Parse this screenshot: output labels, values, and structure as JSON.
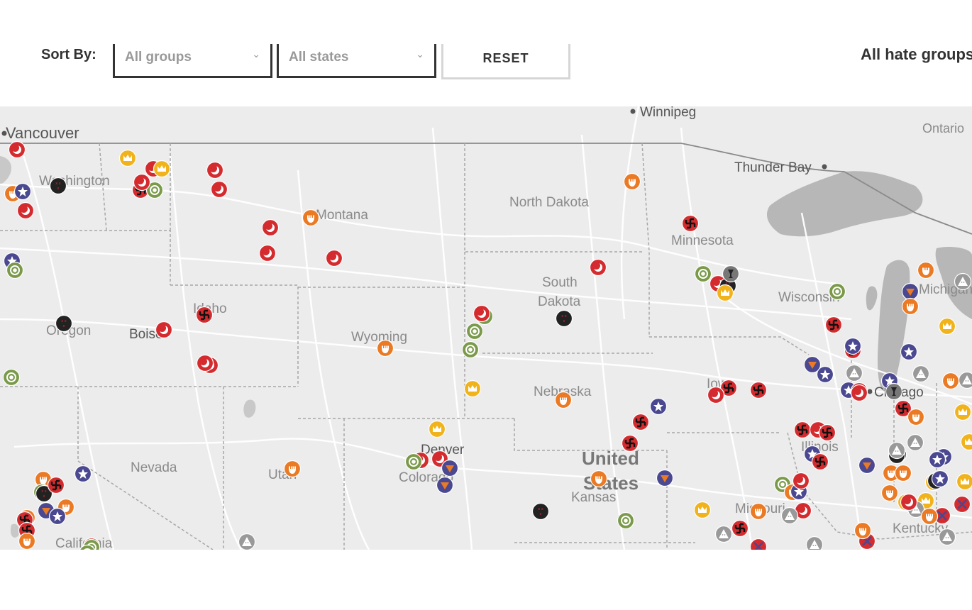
{
  "filters": {
    "sort_label": "Sort By:",
    "group_select": "All groups",
    "state_select": "All states",
    "reset_label": "RESET",
    "results_title": "All hate groups"
  },
  "map": {
    "colors": {
      "land": "#ececec",
      "water": "#b7b7b7",
      "road": "#ffffff",
      "border": "#a7a7a7",
      "label": "#8a8a8a",
      "country_label": "#777777"
    },
    "labels": [
      {
        "name": "Vancouver",
        "type": "city"
      },
      {
        "name": "Winnipeg",
        "type": "city"
      },
      {
        "name": "Ontario",
        "type": "region"
      },
      {
        "name": "Thunder Bay",
        "type": "city"
      },
      {
        "name": "Washington",
        "type": "state"
      },
      {
        "name": "Montana",
        "type": "state"
      },
      {
        "name": "North Dakota",
        "type": "state"
      },
      {
        "name": "Minnesota",
        "type": "state"
      },
      {
        "name": "South",
        "type": "state"
      },
      {
        "name": "Dakota",
        "type": "state"
      },
      {
        "name": "Wisconsin",
        "type": "state"
      },
      {
        "name": "Michigan",
        "type": "state"
      },
      {
        "name": "Idaho",
        "type": "state"
      },
      {
        "name": "Oregon",
        "type": "state"
      },
      {
        "name": "Boise",
        "type": "city"
      },
      {
        "name": "Wyoming",
        "type": "state"
      },
      {
        "name": "Nebraska",
        "type": "state"
      },
      {
        "name": "Iowa",
        "type": "state"
      },
      {
        "name": "Chicago",
        "type": "city"
      },
      {
        "name": "Illinois",
        "type": "state"
      },
      {
        "name": "Nevada",
        "type": "state"
      },
      {
        "name": "Utah",
        "type": "state"
      },
      {
        "name": "Denver",
        "type": "city"
      },
      {
        "name": "Colorado",
        "type": "state"
      },
      {
        "name": "United",
        "type": "country"
      },
      {
        "name": "States",
        "type": "country"
      },
      {
        "name": "Kansas",
        "type": "state"
      },
      {
        "name": "Missouri",
        "type": "state"
      },
      {
        "name": "Kentucky",
        "type": "state"
      },
      {
        "name": "California",
        "type": "state"
      }
    ],
    "legend_colors": {
      "crescent": "#d42b2f",
      "swastika": "#d42b2f",
      "fist": "#ea7a24",
      "crown": "#f1b31c",
      "ring": "#7a9a4a",
      "star": "#4a4890",
      "triangle": "#4a4890",
      "kkk": "#222222",
      "hood": "#999999",
      "cross": "#4a4890",
      "music": "#d42b2f",
      "goblet": "#777777"
    },
    "markers": [
      {
        "type": "crescent",
        "state": "WA"
      },
      {
        "type": "crescent",
        "state": "WA"
      },
      {
        "type": "fist",
        "state": "WA"
      },
      {
        "type": "star",
        "state": "WA"
      },
      {
        "type": "kkk",
        "state": "WA"
      },
      {
        "type": "crown",
        "state": "ID"
      },
      {
        "type": "swastika",
        "state": "ID"
      },
      {
        "type": "ring",
        "state": "ID"
      },
      {
        "type": "crescent",
        "state": "ID"
      },
      {
        "type": "crown",
        "state": "ID"
      },
      {
        "type": "crescent",
        "state": "ID"
      },
      {
        "type": "crescent",
        "state": "MT"
      },
      {
        "type": "crescent",
        "state": "MT"
      },
      {
        "type": "crescent",
        "state": "MT"
      },
      {
        "type": "crescent",
        "state": "MT"
      },
      {
        "type": "crescent",
        "state": "MT"
      },
      {
        "type": "fist",
        "state": "MT"
      },
      {
        "type": "star",
        "state": "OR"
      },
      {
        "type": "ring",
        "state": "OR"
      },
      {
        "type": "kkk",
        "state": "OR"
      },
      {
        "type": "ring",
        "state": "OR"
      },
      {
        "type": "crescent",
        "state": "ID"
      },
      {
        "type": "swastika",
        "state": "ID"
      },
      {
        "type": "crescent",
        "state": "ID"
      },
      {
        "type": "crescent",
        "state": "ID"
      },
      {
        "type": "fist",
        "state": "WY"
      },
      {
        "type": "crescent",
        "state": "SD"
      },
      {
        "type": "ring",
        "state": "SD"
      },
      {
        "type": "ring",
        "state": "SD"
      },
      {
        "type": "ring",
        "state": "NE"
      },
      {
        "type": "crown",
        "state": "NE"
      },
      {
        "type": "kkk",
        "state": "SD"
      },
      {
        "type": "crescent",
        "state": "SD"
      },
      {
        "type": "fist",
        "state": "ND"
      },
      {
        "type": "swastika",
        "state": "MN"
      },
      {
        "type": "ring",
        "state": "MN"
      },
      {
        "type": "crescent",
        "state": "MN"
      },
      {
        "type": "kkk",
        "state": "MN"
      },
      {
        "type": "goblet",
        "state": "MN"
      },
      {
        "type": "crown",
        "state": "MN"
      },
      {
        "type": "ring",
        "state": "WI"
      },
      {
        "type": "swastika",
        "state": "WI"
      },
      {
        "type": "fist",
        "state": "MI"
      },
      {
        "type": "triangle",
        "state": "MI"
      },
      {
        "type": "fist",
        "state": "MI"
      },
      {
        "type": "hood",
        "state": "MI"
      },
      {
        "type": "crown",
        "state": "MI"
      },
      {
        "type": "star",
        "state": "MI"
      },
      {
        "type": "swastika",
        "state": "WI"
      },
      {
        "type": "star",
        "state": "WI"
      },
      {
        "type": "triangle",
        "state": "IL"
      },
      {
        "type": "star",
        "state": "IL"
      },
      {
        "type": "hood",
        "state": "IL"
      },
      {
        "type": "star",
        "state": "IL"
      },
      {
        "type": "music",
        "state": "IL"
      },
      {
        "type": "crescent",
        "state": "IL"
      },
      {
        "type": "star",
        "state": "IN"
      },
      {
        "type": "goblet",
        "state": "IL"
      },
      {
        "type": "hood",
        "state": "IN"
      },
      {
        "type": "kkk",
        "state": "MI"
      },
      {
        "type": "fist",
        "state": "MI"
      },
      {
        "type": "hood",
        "state": "MI"
      },
      {
        "type": "crown",
        "state": "MI"
      },
      {
        "type": "swastika",
        "state": "IN"
      },
      {
        "type": "fist",
        "state": "IN"
      },
      {
        "type": "hood",
        "state": "IN"
      },
      {
        "type": "crown",
        "state": "OH"
      },
      {
        "type": "swastika",
        "state": "IA"
      },
      {
        "type": "crescent",
        "state": "IA"
      },
      {
        "type": "swastika",
        "state": "IA"
      },
      {
        "type": "star",
        "state": "NE"
      },
      {
        "type": "fist",
        "state": "NE"
      },
      {
        "type": "swastika",
        "state": "NE"
      },
      {
        "type": "swastika",
        "state": "KS"
      },
      {
        "type": "crown",
        "state": "CO"
      },
      {
        "type": "crescent",
        "state": "CO"
      },
      {
        "type": "crescent",
        "state": "CO"
      },
      {
        "type": "ring",
        "state": "CO"
      },
      {
        "type": "triangle",
        "state": "CO"
      },
      {
        "type": "triangle",
        "state": "CO"
      },
      {
        "type": "fist",
        "state": "UT"
      },
      {
        "type": "swastika",
        "state": "IL"
      },
      {
        "type": "crescent",
        "state": "IL"
      },
      {
        "type": "swastika",
        "state": "IL"
      },
      {
        "type": "star",
        "state": "IL"
      },
      {
        "type": "swastika",
        "state": "IL"
      },
      {
        "type": "triangle",
        "state": "IN"
      },
      {
        "type": "fist",
        "state": "IN"
      },
      {
        "type": "kkk",
        "state": "IN"
      },
      {
        "type": "star",
        "state": "IN"
      },
      {
        "type": "fist",
        "state": "IN"
      },
      {
        "type": "crown",
        "state": "OH"
      },
      {
        "type": "ring",
        "state": "MO"
      },
      {
        "type": "fist",
        "state": "MO"
      },
      {
        "type": "crescent",
        "state": "MO"
      },
      {
        "type": "star",
        "state": "MO"
      },
      {
        "type": "triangle",
        "state": "KS"
      },
      {
        "type": "fist",
        "state": "KS"
      },
      {
        "type": "hood",
        "state": "MO"
      },
      {
        "type": "crescent",
        "state": "MO"
      },
      {
        "type": "crown",
        "state": "MO"
      },
      {
        "type": "fist",
        "state": "MO"
      },
      {
        "type": "hood",
        "state": "MO"
      },
      {
        "type": "swastika",
        "state": "MO"
      },
      {
        "type": "cross",
        "state": "MO"
      },
      {
        "type": "hood",
        "state": "KY"
      },
      {
        "type": "crown",
        "state": "KY"
      },
      {
        "type": "fist",
        "state": "KY"
      },
      {
        "type": "cross",
        "state": "KY"
      },
      {
        "type": "fist",
        "state": "IN"
      },
      {
        "type": "star",
        "state": "IN"
      },
      {
        "type": "crown",
        "state": "KY"
      },
      {
        "type": "kkk",
        "state": "KY"
      },
      {
        "type": "hood",
        "state": "KY"
      },
      {
        "type": "cross",
        "state": "KY"
      },
      {
        "type": "hood",
        "state": "OH"
      },
      {
        "type": "cross",
        "state": "KY"
      },
      {
        "type": "hood",
        "state": "OH"
      },
      {
        "type": "fist",
        "state": "OH"
      },
      {
        "type": "crown",
        "state": "OH"
      },
      {
        "type": "star",
        "state": "OH"
      },
      {
        "type": "crescent",
        "state": "KS"
      },
      {
        "type": "kkk",
        "state": "KS"
      },
      {
        "type": "ring",
        "state": "NV"
      },
      {
        "type": "fist",
        "state": "NV"
      },
      {
        "type": "ring",
        "state": "NV"
      },
      {
        "type": "kkk",
        "state": "NV"
      },
      {
        "type": "swastika",
        "state": "NV"
      },
      {
        "type": "star",
        "state": "CA"
      },
      {
        "type": "triangle",
        "state": "CA"
      },
      {
        "type": "fist",
        "state": "CA"
      },
      {
        "type": "star",
        "state": "CA"
      },
      {
        "type": "fist",
        "state": "CA"
      },
      {
        "type": "crescent",
        "state": "CA"
      },
      {
        "type": "swastika",
        "state": "CA"
      },
      {
        "type": "swastika",
        "state": "CA"
      },
      {
        "type": "fist",
        "state": "CA"
      },
      {
        "type": "ring",
        "state": "CA"
      },
      {
        "type": "ring",
        "state": "AZ"
      },
      {
        "type": "hood",
        "state": "CA"
      }
    ]
  }
}
